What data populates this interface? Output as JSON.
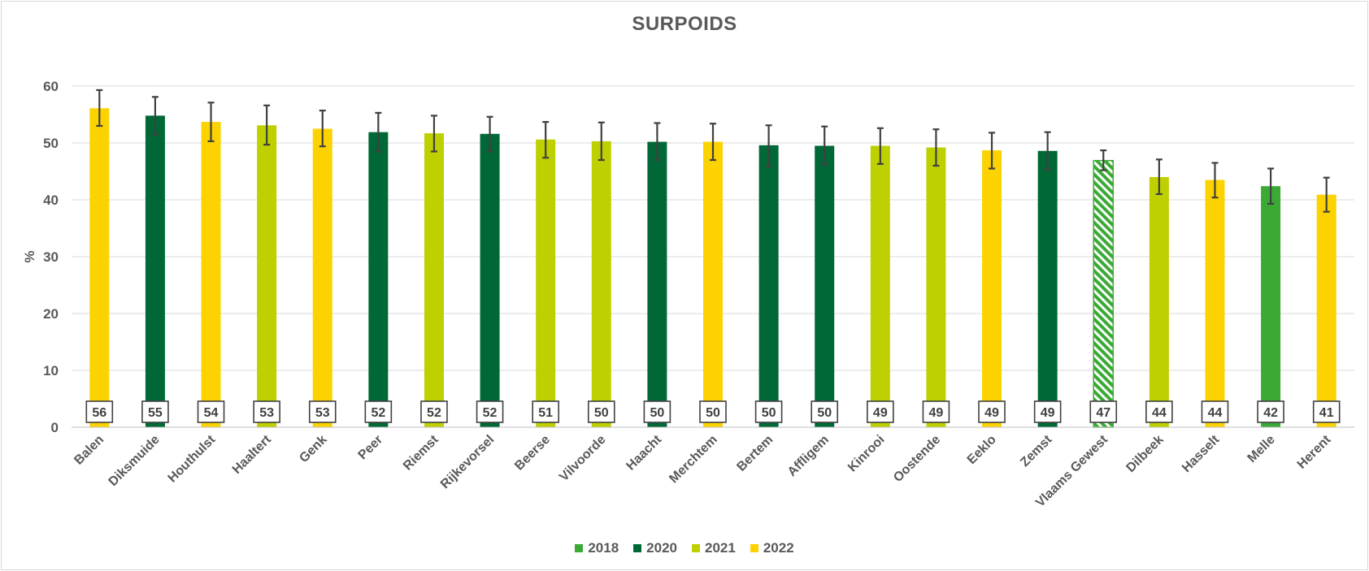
{
  "chart_data": {
    "type": "bar",
    "title": "SURPOIDS",
    "ylabel": "%",
    "xlabel": "",
    "ylim": [
      0,
      60
    ],
    "yticks": [
      0,
      10,
      20,
      30,
      40,
      50,
      60
    ],
    "grid": true,
    "legend_position": "bottom",
    "legend": [
      {
        "name": "2018",
        "color": "#3aaa35"
      },
      {
        "name": "2020",
        "color": "#006837"
      },
      {
        "name": "2021",
        "color": "#bed000"
      },
      {
        "name": "2022",
        "color": "#fcd300"
      }
    ],
    "categories": [
      "Balen",
      "Diksmuide",
      "Houthulst",
      "Haaltert",
      "Genk",
      "Peer",
      "Riemst",
      "Rijkevorsel",
      "Beerse",
      "Vilvoorde",
      "Haacht",
      "Merchtem",
      "Bertem",
      "Affligem",
      "Kinrooi",
      "Oostende",
      "Eeklo",
      "Zemst",
      "Vlaams Gewest",
      "Dilbeek",
      "Hasselt",
      "Melle",
      "Herent"
    ],
    "values": [
      56.1,
      54.8,
      53.7,
      53.1,
      52.5,
      51.9,
      51.7,
      51.6,
      50.6,
      50.3,
      50.2,
      50.2,
      49.6,
      49.5,
      49.5,
      49.2,
      48.7,
      48.6,
      46.9,
      44.0,
      43.5,
      42.4,
      40.9
    ],
    "labels": [
      "56",
      "55",
      "54",
      "53",
      "53",
      "52",
      "52",
      "52",
      "51",
      "50",
      "50",
      "50",
      "50",
      "50",
      "49",
      "49",
      "49",
      "49",
      "47",
      "44",
      "44",
      "42",
      "41"
    ],
    "error_low": [
      53.0,
      51.5,
      50.3,
      49.7,
      49.4,
      48.5,
      48.5,
      48.5,
      47.4,
      47.0,
      47.0,
      47.0,
      45.9,
      46.2,
      46.3,
      46.0,
      45.5,
      45.3,
      45.2,
      41.0,
      40.4,
      39.3,
      37.9
    ],
    "error_high": [
      59.3,
      58.1,
      57.1,
      56.6,
      55.7,
      55.3,
      54.8,
      54.6,
      53.7,
      53.6,
      53.5,
      53.4,
      53.1,
      52.9,
      52.6,
      52.4,
      51.8,
      51.9,
      48.7,
      47.1,
      46.5,
      45.5,
      43.9
    ],
    "years": [
      "2022",
      "2020",
      "2022",
      "2021",
      "2022",
      "2020",
      "2021",
      "2020",
      "2021",
      "2021",
      "2020",
      "2022",
      "2020",
      "2020",
      "2021",
      "2021",
      "2022",
      "2020",
      "total",
      "2021",
      "2022",
      "2018",
      "2022"
    ],
    "colors": {
      "2018": "#3aaa35",
      "2020": "#006837",
      "2021": "#bed000",
      "2022": "#fcd300",
      "total": "#3aaa35",
      "grid": "#d9d9d9",
      "axis_text": "#595959",
      "error_bar": "#404040"
    }
  }
}
